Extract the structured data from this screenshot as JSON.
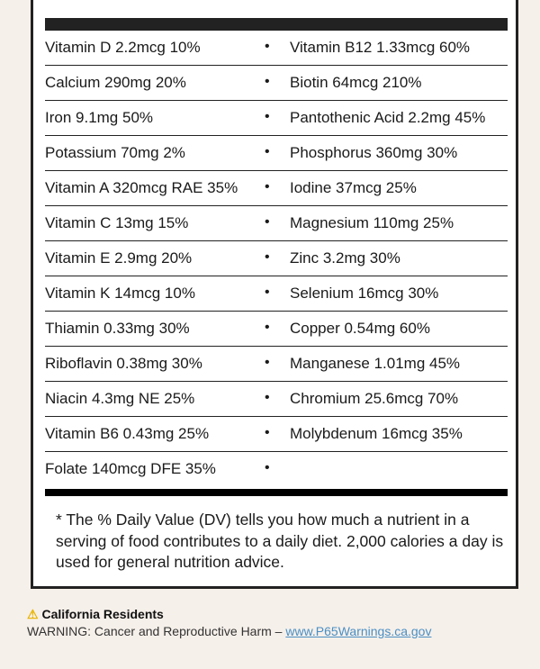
{
  "nutrients": [
    {
      "left": "Vitamin D 2.2mcg 10%",
      "right": "Vitamin B12 1.33mcg 60%"
    },
    {
      "left": "Calcium 290mg 20%",
      "right": "Biotin 64mcg 210%"
    },
    {
      "left": "Iron 9.1mg 50%",
      "right": "Pantothenic Acid 2.2mg 45%"
    },
    {
      "left": "Potassium 70mg 2%",
      "right": "Phosphorus 360mg 30%"
    },
    {
      "left": "Vitamin A 320mcg RAE 35%",
      "right": "Iodine 37mcg 25%"
    },
    {
      "left": "Vitamin C 13mg 15%",
      "right": "Magnesium 110mg 25%"
    },
    {
      "left": "Vitamin E 2.9mg 20%",
      "right": "Zinc 3.2mg 30%"
    },
    {
      "left": "Vitamin K 14mcg 10%",
      "right": "Selenium 16mcg 30%"
    },
    {
      "left": "Thiamin 0.33mg 30%",
      "right": "Copper 0.54mg 60%"
    },
    {
      "left": "Riboflavin 0.38mg 30%",
      "right": "Manganese 1.01mg 45%"
    },
    {
      "left": "Niacin 4.3mg NE 25%",
      "right": "Chromium 25.6mcg 70%"
    },
    {
      "left": "Vitamin B6 0.43mg 25%",
      "right": "Molybdenum 16mcg 35%"
    },
    {
      "left": "Folate 140mcg DFE 35%",
      "right": ""
    }
  ],
  "bullet": "•",
  "footnote": "* The % Daily Value (DV) tells you how much a nutrient in a serving of food contributes to a daily diet. 2,000 calories a day is used for general nutrition advice.",
  "warning": {
    "icon": "warning-triangle-icon",
    "icon_glyph": "⚠",
    "title": "California Residents",
    "text": "WARNING: Cancer and Reproductive Harm – ",
    "link": "www.P65Warnings.ca.gov"
  },
  "colors": {
    "background": "#f6f0ea",
    "link": "#4a8fc4",
    "warning_icon": "#e8b400"
  }
}
